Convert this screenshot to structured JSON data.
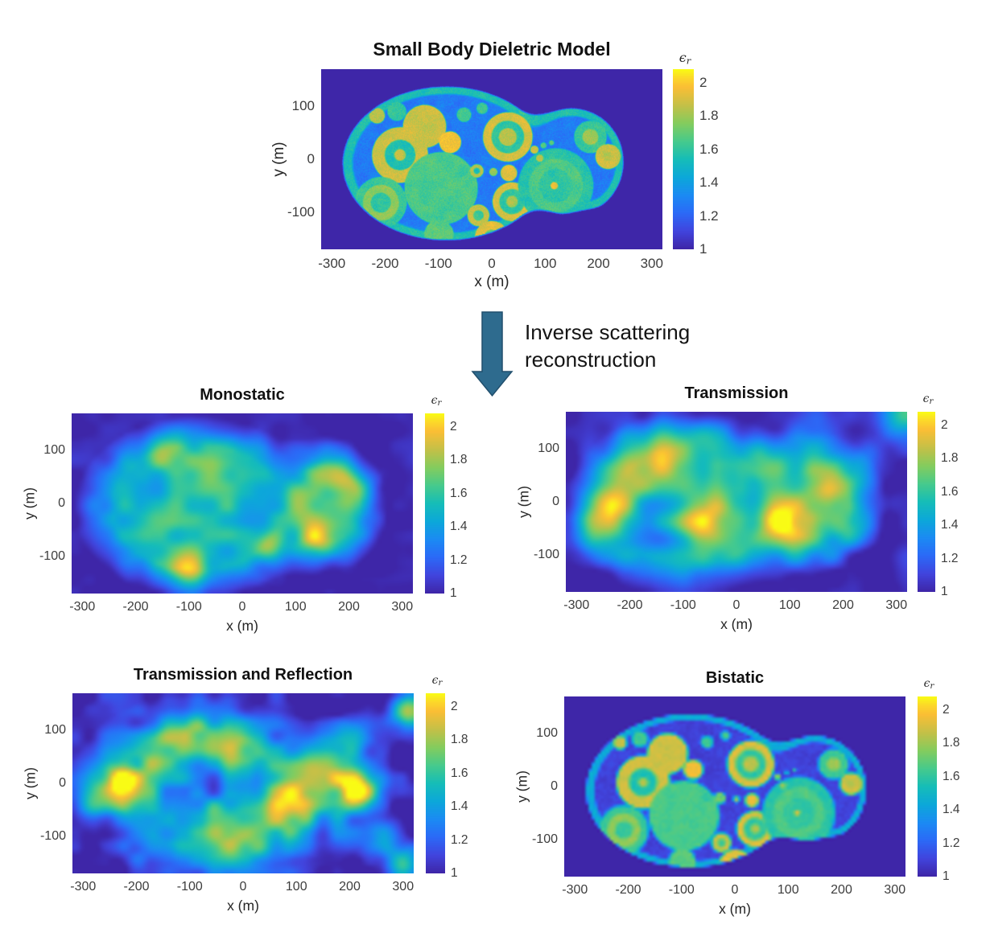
{
  "page": {
    "background": "#ffffff"
  },
  "arrow": {
    "label_line1": "Inverse scattering",
    "label_line2": "reconstruction",
    "fill_color": "#2e6b8e",
    "stroke_color": "#214f6d"
  },
  "colorbar": {
    "label_epsilon": "ϵ",
    "label_sub": "r",
    "ticks": [
      2,
      1.8,
      1.6,
      1.4,
      1.2,
      1
    ],
    "min": 1,
    "max": 2.08
  },
  "colormap": {
    "name": "parula",
    "stops": [
      {
        "t": 0.0,
        "c": "#3e26a8"
      },
      {
        "t": 0.1,
        "c": "#4145de"
      },
      {
        "t": 0.2,
        "c": "#2b6af7"
      },
      {
        "t": 0.3,
        "c": "#1b8bf3"
      },
      {
        "t": 0.4,
        "c": "#0ca8d9"
      },
      {
        "t": 0.5,
        "c": "#16bdb8"
      },
      {
        "t": 0.6,
        "c": "#47ca8c"
      },
      {
        "t": 0.7,
        "c": "#84cc5e"
      },
      {
        "t": 0.8,
        "c": "#c4c048"
      },
      {
        "t": 0.9,
        "c": "#fabe35"
      },
      {
        "t": 0.95,
        "c": "#fcd62a"
      },
      {
        "t": 1.0,
        "c": "#f9fb15"
      }
    ]
  },
  "chart_data": [
    {
      "type": "heatmap",
      "id": "model",
      "title": "Small Body Dieletric Model",
      "xlabel": "x (m)",
      "ylabel": "y (m)",
      "xticks": [
        -300,
        -200,
        -100,
        0,
        100,
        200,
        300
      ],
      "yticks": [
        100,
        0,
        -100
      ],
      "xlim": [
        -320,
        320
      ],
      "ylim": [
        -170,
        170
      ],
      "colorbar_label": "epsilon_r",
      "colorbar_ticks": [
        2,
        1.8,
        1.6,
        1.4,
        1.2,
        1
      ],
      "colormap": "parula",
      "content": {
        "background_eps": 1.0,
        "body": {
          "ellipses": [
            [
              -85,
              -8,
              196,
              146
            ],
            [
              150,
              -5,
              98,
              102
            ]
          ],
          "union_smooth": 45,
          "notch": [
            180,
            -160,
            55
          ],
          "notch_smooth": 28,
          "rim_eps": 1.56,
          "rim_width": 13,
          "interior_eps": 1.27,
          "speckle": 0.055
        },
        "inclusions_columns": [
          "x_m",
          "y_m",
          "radius_m",
          "epsilon_r"
        ],
        "inclusions": [
          [
            -126,
            62,
            42,
            1.88
          ],
          [
            -78,
            32,
            22,
            1.95
          ],
          [
            -215,
            82,
            16,
            1.85
          ],
          [
            -178,
            90,
            19,
            1.62
          ],
          [
            -52,
            84,
            15,
            1.63
          ],
          [
            -18,
            96,
            12,
            1.62
          ],
          [
            60,
            94,
            11,
            1.65
          ],
          [
            30,
            42,
            48,
            1.9
          ],
          [
            30,
            42,
            32,
            1.6
          ],
          [
            30,
            42,
            18,
            1.85
          ],
          [
            -172,
            8,
            54,
            1.88
          ],
          [
            -172,
            8,
            30,
            1.56
          ],
          [
            -172,
            8,
            12,
            1.85
          ],
          [
            -95,
            -55,
            70,
            1.65
          ],
          [
            -208,
            -82,
            50,
            1.62
          ],
          [
            -208,
            -82,
            35,
            1.78
          ],
          [
            -208,
            -82,
            20,
            1.6
          ],
          [
            38,
            -80,
            38,
            1.9
          ],
          [
            38,
            -80,
            25,
            1.6
          ],
          [
            38,
            -80,
            12,
            1.82
          ],
          [
            -25,
            -106,
            22,
            1.88
          ],
          [
            -25,
            -106,
            11,
            1.62
          ],
          [
            0,
            -148,
            33,
            1.92
          ],
          [
            0,
            -148,
            16,
            1.65
          ],
          [
            -99,
            -142,
            29,
            1.68
          ],
          [
            120,
            -50,
            72,
            1.58
          ],
          [
            120,
            -50,
            52,
            1.66
          ],
          [
            120,
            -50,
            33,
            1.6
          ],
          [
            117,
            -50,
            8,
            1.95
          ],
          [
            185,
            42,
            32,
            1.62
          ],
          [
            185,
            42,
            16,
            1.8
          ],
          [
            218,
            5,
            25,
            1.88
          ],
          [
            218,
            5,
            10,
            1.82
          ],
          [
            -54,
            -20,
            12,
            1.6
          ],
          [
            -28,
            -22,
            14,
            1.85
          ],
          [
            -28,
            -22,
            7,
            1.55
          ],
          [
            3,
            -24,
            9,
            1.8
          ],
          [
            32,
            -26,
            17,
            1.92
          ],
          [
            80,
            18,
            9,
            1.9
          ],
          [
            97,
            26,
            7,
            1.68
          ],
          [
            112,
            31,
            6,
            1.72
          ],
          [
            90,
            2,
            8,
            1.85
          ]
        ]
      }
    },
    {
      "type": "heatmap",
      "id": "monostatic",
      "title": "Monostatic",
      "xlabel": "x (m)",
      "ylabel": "y (m)",
      "xticks": [
        -300,
        -200,
        -100,
        0,
        100,
        200,
        300
      ],
      "yticks": [
        100,
        0,
        -100
      ],
      "xlim": [
        -320,
        320
      ],
      "ylim": [
        -170,
        170
      ],
      "colorbar_label": "epsilon_r",
      "colorbar_ticks": [
        2,
        1.8,
        1.6,
        1.4,
        1.2,
        1
      ],
      "colormap": "parula",
      "content": {
        "base_eps": 1.5,
        "body_softness": 55,
        "background_visibility": 0.45,
        "texture": {
          "coarse": [
            9,
            5,
            0.09
          ],
          "fine": [
            20,
            12,
            0.11
          ],
          "seed": 7
        },
        "bright_spots_columns": [
          "x_m",
          "y_m",
          "radius_m",
          "amplitude"
        ],
        "bright_spots": [
          [
            -140,
            95,
            30,
            0.28
          ],
          [
            110,
            0,
            26,
            0.33
          ],
          [
            165,
            55,
            26,
            0.38
          ],
          [
            140,
            -62,
            26,
            0.45
          ],
          [
            48,
            -82,
            22,
            0.42
          ],
          [
            -100,
            -122,
            26,
            0.45
          ],
          [
            -160,
            -35,
            32,
            0.22
          ],
          [
            -60,
            58,
            30,
            0.22
          ],
          [
            215,
            30,
            25,
            0.3
          ]
        ]
      }
    },
    {
      "type": "heatmap",
      "id": "transmission",
      "title": "Transmission",
      "xlabel": "x (m)",
      "ylabel": "y (m)",
      "xticks": [
        -300,
        -200,
        -100,
        0,
        100,
        200,
        300
      ],
      "yticks": [
        100,
        0,
        -100
      ],
      "xlim": [
        -320,
        320
      ],
      "ylim": [
        -170,
        170
      ],
      "colorbar_label": "epsilon_r",
      "colorbar_ticks": [
        2,
        1.8,
        1.6,
        1.4,
        1.2,
        1
      ],
      "colormap": "parula",
      "content": {
        "base_eps": 1.36,
        "body_softness": 70,
        "background_visibility": 0.5,
        "texture": {
          "coarse": [
            8,
            5,
            0.15
          ],
          "fine": [
            18,
            10,
            0.15
          ],
          "seed": 13
        },
        "bright_spots_columns": [
          "x_m",
          "y_m",
          "radius_m",
          "amplitude"
        ],
        "bright_spots": [
          [
            -240,
            0,
            42,
            0.62
          ],
          [
            -48,
            -35,
            48,
            0.58
          ],
          [
            92,
            -40,
            46,
            0.7
          ],
          [
            -190,
            72,
            48,
            0.42
          ],
          [
            -118,
            88,
            42,
            0.38
          ],
          [
            -40,
            118,
            38,
            0.32
          ],
          [
            62,
            58,
            44,
            0.38
          ],
          [
            172,
            16,
            36,
            0.48
          ],
          [
            215,
            -48,
            30,
            0.38
          ],
          [
            232,
            62,
            30,
            0.32
          ],
          [
            316,
            166,
            36,
            0.65
          ],
          [
            -262,
            -62,
            30,
            0.28
          ],
          [
            150,
            110,
            40,
            0.3
          ]
        ]
      }
    },
    {
      "type": "heatmap",
      "id": "transmission-reflection",
      "title": "Transmission and Reflection",
      "xlabel": "x (m)",
      "ylabel": "y (m)",
      "xticks": [
        -300,
        -200,
        -100,
        0,
        100,
        200,
        300
      ],
      "yticks": [
        100,
        0,
        -100
      ],
      "xlim": [
        -320,
        320
      ],
      "ylim": [
        -170,
        170
      ],
      "colorbar_label": "epsilon_r",
      "colorbar_ticks": [
        2,
        1.8,
        1.6,
        1.4,
        1.2,
        1
      ],
      "colormap": "parula",
      "content": {
        "base_eps": 1.37,
        "body_softness": 70,
        "background_visibility": 0.5,
        "texture": {
          "coarse": [
            10,
            6,
            0.17
          ],
          "fine": [
            22,
            13,
            0.19
          ],
          "seed": 29
        },
        "bright_spots_columns": [
          "x_m",
          "y_m",
          "radius_m",
          "amplitude"
        ],
        "bright_spots": [
          [
            -228,
            0,
            36,
            0.78
          ],
          [
            -150,
            56,
            34,
            0.42
          ],
          [
            -90,
            86,
            34,
            0.46
          ],
          [
            -20,
            80,
            38,
            0.42
          ],
          [
            100,
            -26,
            44,
            0.55
          ],
          [
            148,
            36,
            34,
            0.55
          ],
          [
            214,
            -16,
            28,
            0.7
          ],
          [
            62,
            -112,
            48,
            0.42
          ],
          [
            -42,
            -116,
            44,
            0.38
          ],
          [
            306,
            136,
            24,
            0.8
          ],
          [
            300,
            -152,
            26,
            0.7
          ],
          [
            262,
            -92,
            26,
            0.38
          ],
          [
            -280,
            -42,
            26,
            0.28
          ],
          [
            210,
            90,
            30,
            0.35
          ]
        ]
      }
    },
    {
      "type": "heatmap",
      "id": "bistatic",
      "title": "Bistatic",
      "xlabel": "x (m)",
      "ylabel": "y (m)",
      "xticks": [
        -300,
        -200,
        -100,
        0,
        100,
        200,
        300
      ],
      "yticks": [
        100,
        0,
        -100
      ],
      "xlim": [
        -320,
        320
      ],
      "ylim": [
        -170,
        170
      ],
      "colorbar_label": "epsilon_r",
      "colorbar_ticks": [
        2,
        1.8,
        1.6,
        1.4,
        1.2,
        1
      ],
      "colormap": "parula",
      "content": {
        "uses_model_structure": true,
        "rim_eps": 1.44,
        "rim_width": 11,
        "interior_eps": 1.1,
        "blur": "high",
        "speckle": 0.02
      }
    }
  ]
}
